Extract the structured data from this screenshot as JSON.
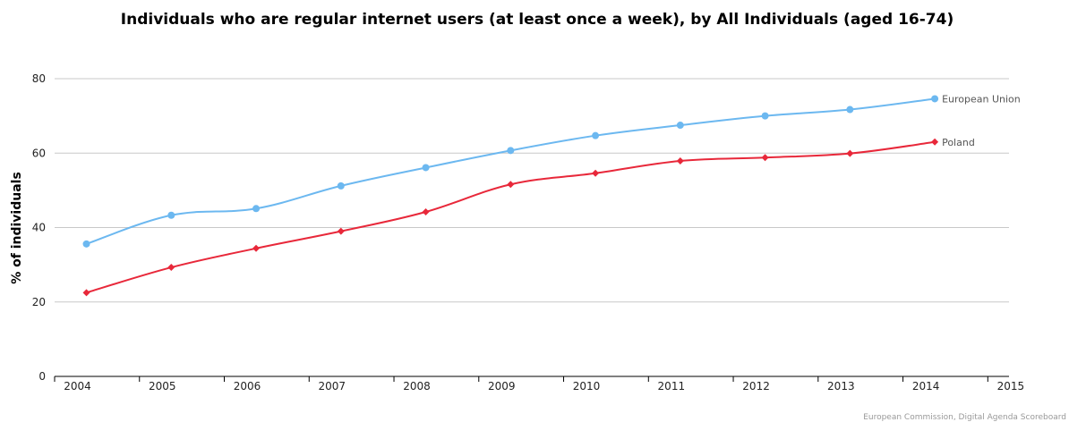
{
  "chart_data": {
    "type": "line",
    "title": "Individuals who are regular internet users (at least once a week), by All Individuals (aged 16-74)",
    "ylabel": "% of individuals",
    "xlabel": "",
    "categories": [
      "2004",
      "2005",
      "2006",
      "2007",
      "2008",
      "2009",
      "2010",
      "2011",
      "2012",
      "2013",
      "2014",
      "2015"
    ],
    "ylim": [
      0,
      80
    ],
    "yticks": [
      "0",
      "20",
      "40",
      "60",
      "80"
    ],
    "grid": true,
    "series": [
      {
        "name": "European Union",
        "color": "#6cb8f0",
        "x": [
          "2004",
          "2005",
          "2006",
          "2007",
          "2008",
          "2009",
          "2010",
          "2011",
          "2012",
          "2013",
          "2014"
        ],
        "values": [
          35.6,
          43.3,
          45.1,
          51.2,
          56.1,
          60.7,
          64.7,
          67.5,
          70.0,
          71.7,
          74.6
        ]
      },
      {
        "name": "Poland",
        "color": "#e8283a",
        "x": [
          "2004",
          "2005",
          "2006",
          "2007",
          "2008",
          "2009",
          "2010",
          "2011",
          "2012",
          "2013",
          "2014"
        ],
        "values": [
          22.5,
          29.3,
          34.4,
          39.0,
          44.2,
          51.6,
          54.6,
          57.9,
          58.8,
          59.9,
          63.0
        ]
      }
    ],
    "credit": "European Commission, Digital Agenda Scoreboard"
  }
}
